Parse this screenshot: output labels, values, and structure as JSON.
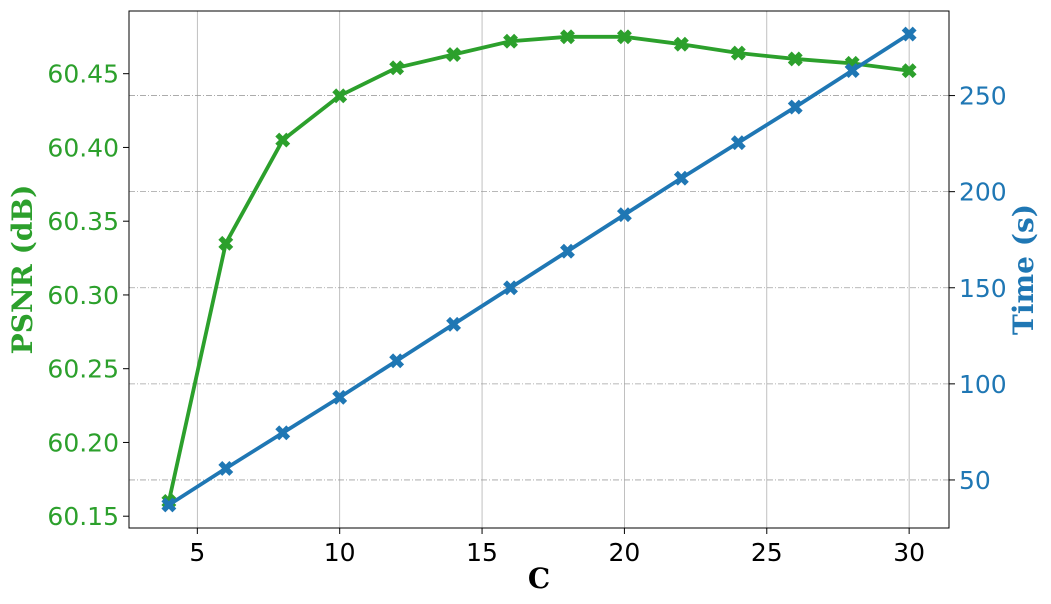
{
  "chart_data": {
    "type": "line",
    "xlabel": "C",
    "ylabel_left": "PSNR (dB)",
    "ylabel_right": "Time (s)",
    "x": [
      4,
      6,
      8,
      10,
      12,
      14,
      16,
      18,
      20,
      22,
      24,
      26,
      28,
      30
    ],
    "xlim": [
      2.6,
      31.4
    ],
    "xticks": [
      5,
      10,
      15,
      20,
      25,
      30
    ],
    "left_axis": {
      "ylim": [
        60.142,
        60.4925
      ],
      "yticks": [
        60.15,
        60.2,
        60.25,
        60.3,
        60.35,
        60.4,
        60.45
      ],
      "tick_labels": [
        "60.15",
        "60.20",
        "60.25",
        "60.30",
        "60.35",
        "60.40",
        "60.45"
      ],
      "color": "#2ca02c"
    },
    "right_axis": {
      "ylim": [
        25,
        294
      ],
      "yticks": [
        50,
        100,
        150,
        200,
        250
      ],
      "tick_labels": [
        "50",
        "100",
        "150",
        "200",
        "250"
      ],
      "color": "#1f77b4"
    },
    "series": [
      {
        "axis": "left",
        "color": "#2ca02c",
        "marker": "X",
        "values": [
          60.16,
          60.335,
          60.405,
          60.435,
          60.454,
          60.463,
          60.472,
          60.475,
          60.475,
          60.47,
          60.464,
          60.46,
          60.457,
          60.452
        ]
      },
      {
        "axis": "right",
        "color": "#1f77b4",
        "marker": "X",
        "values": [
          37,
          56,
          74.5,
          93,
          112,
          131,
          150,
          169,
          188,
          207,
          225.5,
          244,
          263,
          282
        ]
      }
    ],
    "grid": {
      "x": "solid light gray",
      "right_y": "dash-dot gray"
    }
  }
}
